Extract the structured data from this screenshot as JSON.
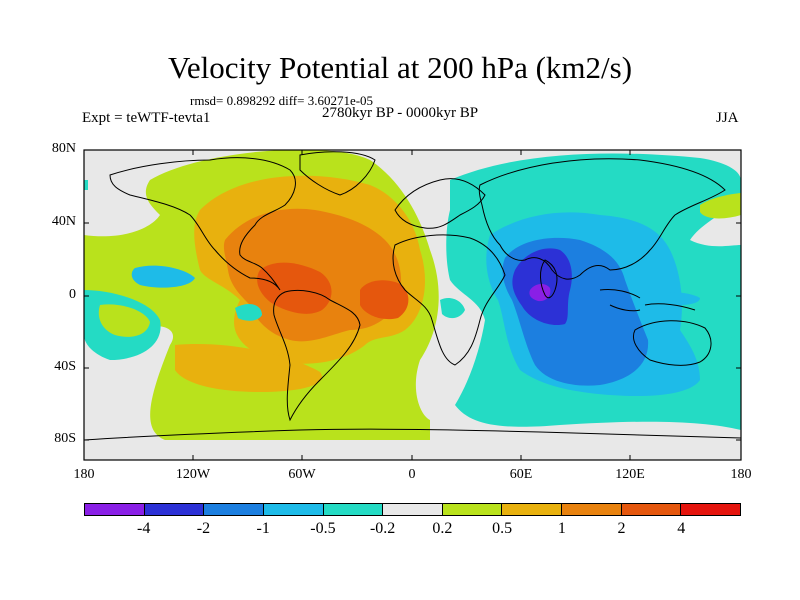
{
  "title": "Velocity Potential at 200 hPa (km2/s)",
  "stats": "rmsd= 0.898292 diff= 3.60271e-05",
  "expt": "Expt = teWTF-tevta1",
  "period": "2780kyr BP - 0000kyr BP",
  "season": "JJA",
  "lat_labels": [
    "80N",
    "40N",
    "0",
    "40S",
    "80S"
  ],
  "lon_labels": [
    "180",
    "120W",
    "60W",
    "0",
    "60E",
    "120E",
    "180"
  ],
  "colorbar": {
    "colors": [
      "#8A1FE6",
      "#2C31D6",
      "#1C7FE0",
      "#1EBBE8",
      "#24DBC4",
      "#E8E8E8",
      "#B9E21C",
      "#E8B10E",
      "#E8820E",
      "#E5570D",
      "#E5140D"
    ],
    "labels": [
      "-4",
      "-2",
      "-1",
      "-0.5",
      "-0.2",
      "0.2",
      "0.5",
      "1",
      "2",
      "4"
    ]
  }
}
